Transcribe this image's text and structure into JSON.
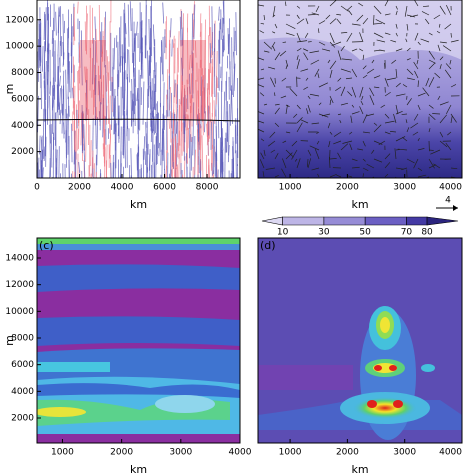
{
  "chart_data": [
    {
      "type": "field",
      "xlabel": "km",
      "ylabel": "m",
      "xlim": [
        0,
        9550
      ],
      "ylim": [
        0,
        13500
      ],
      "xticks": [
        0,
        2000,
        4000,
        6000,
        8000
      ],
      "yticks": [
        2000,
        4000,
        6000,
        8000,
        10000,
        12000
      ]
    },
    {
      "type": "field",
      "xlabel": "km",
      "xlim": [
        440,
        4000
      ],
      "ylim": [
        0,
        13500
      ],
      "xticks": [
        1000,
        2000,
        3000,
        4000
      ],
      "colorbar": {
        "lim": [
          0,
          95
        ],
        "ticks": [
          10,
          30,
          50,
          70,
          80
        ]
      },
      "vector_reference": 4
    },
    {
      "type": "field",
      "panel_label": "(c)",
      "xlabel": "km",
      "ylabel": "m",
      "xlim": [
        570,
        4000
      ],
      "ylim": [
        125,
        15500
      ],
      "xticks": [
        1000,
        2000,
        3000,
        4000
      ],
      "yticks": [
        2000,
        4000,
        6000,
        8000,
        10000,
        12000,
        14000
      ]
    },
    {
      "type": "field",
      "panel_label": "(d)",
      "xlabel": "km",
      "xlim": [
        440,
        4000
      ],
      "ylim": [
        125,
        15500
      ],
      "xticks": [
        1000,
        2000,
        3000,
        4000
      ]
    }
  ]
}
